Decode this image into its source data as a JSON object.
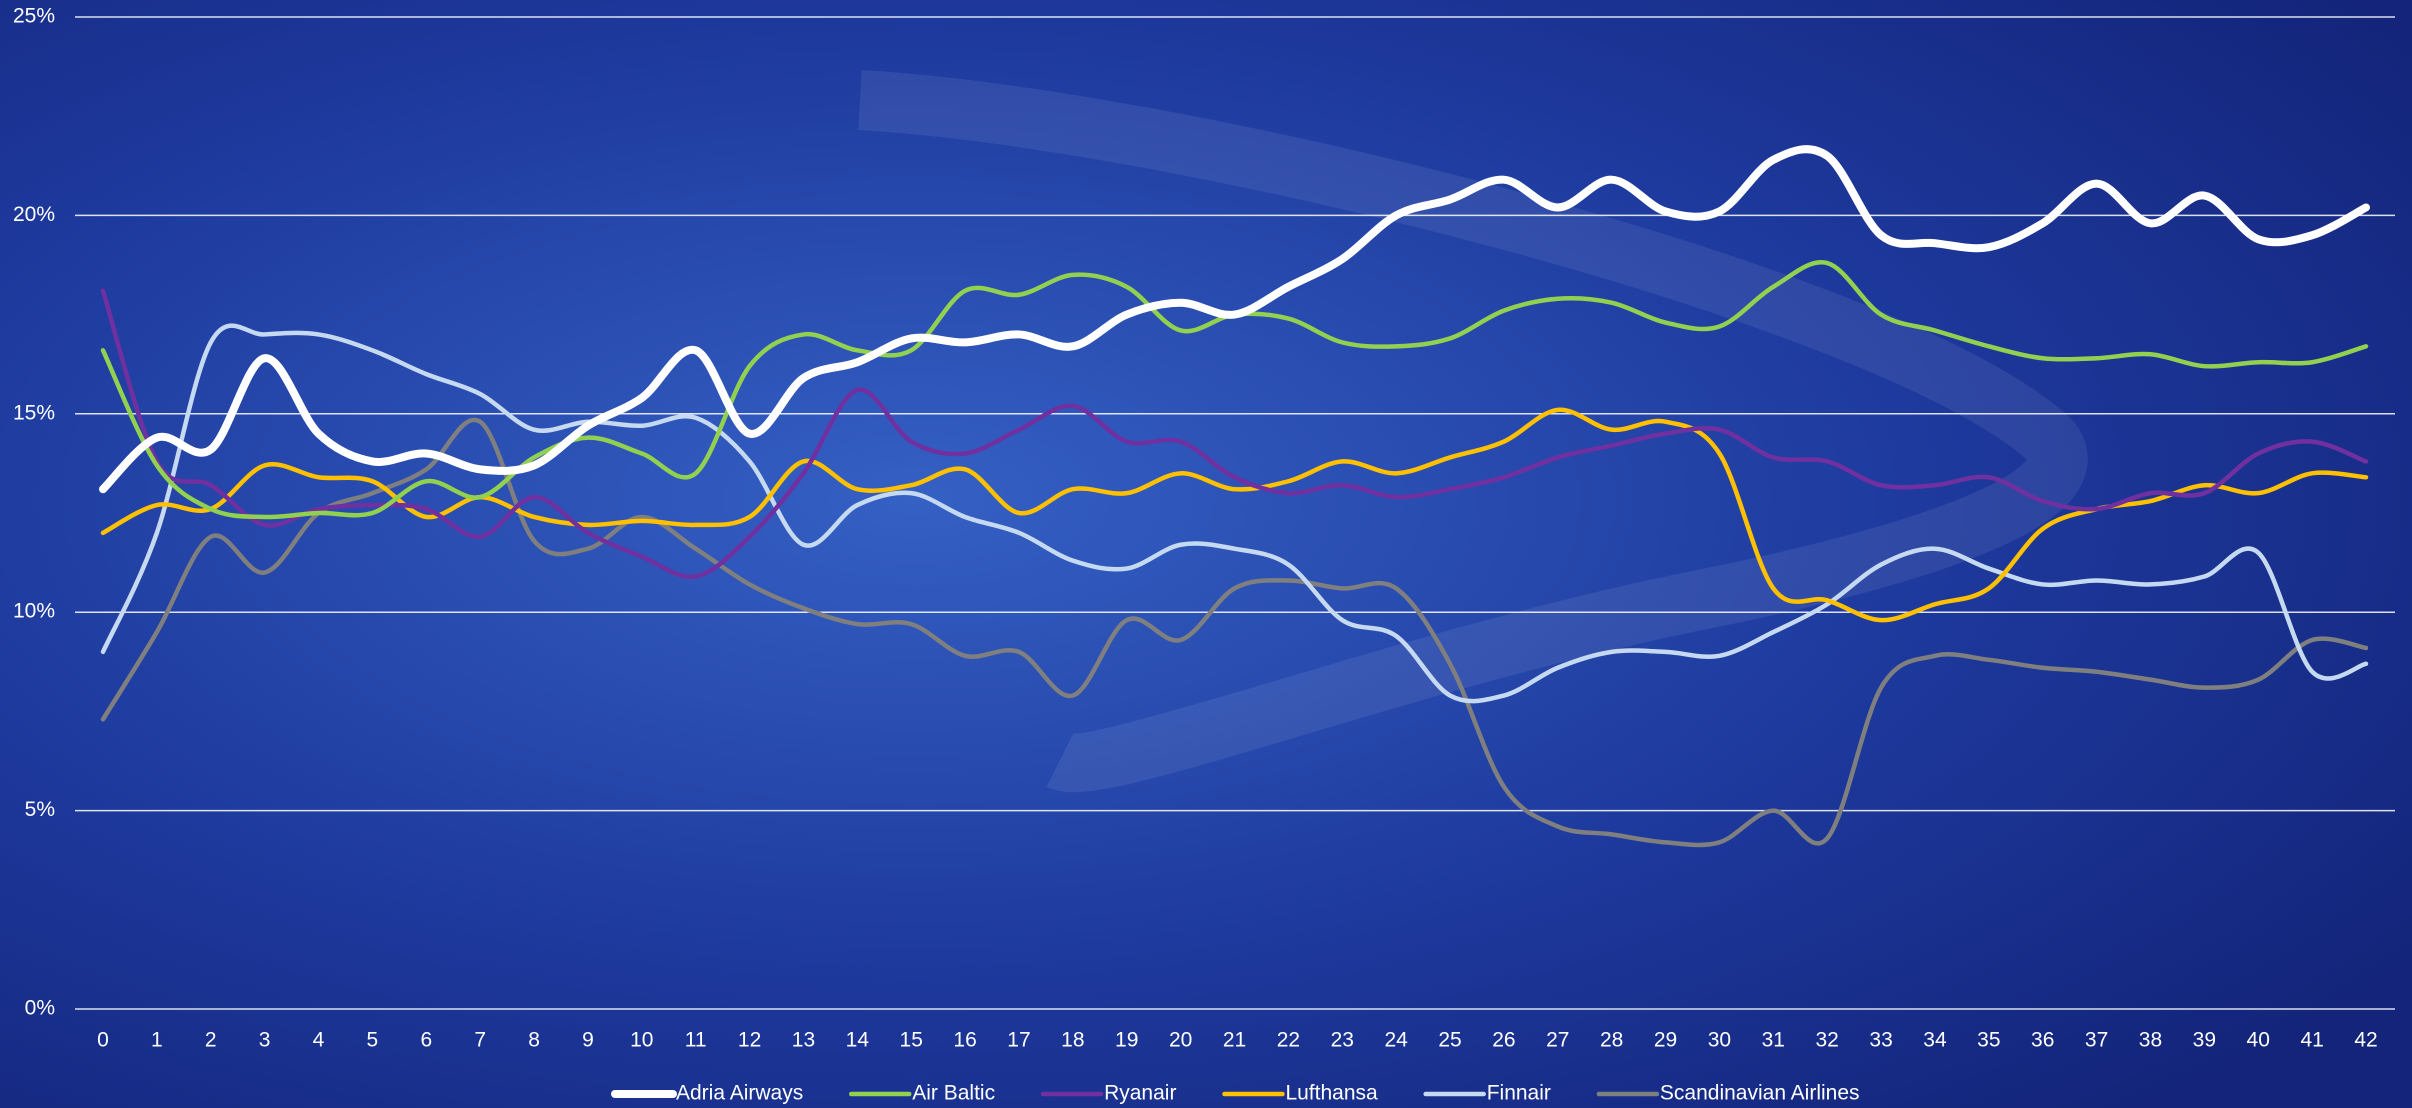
{
  "chart_data": {
    "type": "line",
    "x": [
      0,
      1,
      2,
      3,
      4,
      5,
      6,
      7,
      8,
      9,
      10,
      11,
      12,
      13,
      14,
      15,
      16,
      17,
      18,
      19,
      20,
      21,
      22,
      23,
      24,
      25,
      26,
      27,
      28,
      29,
      30,
      31,
      32,
      33,
      34,
      35,
      36,
      37,
      38,
      39,
      40,
      41,
      42
    ],
    "xlim": [
      0,
      42
    ],
    "xticks": [
      0,
      1,
      2,
      3,
      4,
      5,
      6,
      7,
      8,
      9,
      10,
      11,
      12,
      13,
      14,
      15,
      16,
      17,
      18,
      19,
      20,
      21,
      22,
      23,
      24,
      25,
      26,
      27,
      28,
      29,
      30,
      31,
      32,
      33,
      34,
      35,
      36,
      37,
      38,
      39,
      40,
      41,
      42
    ],
    "ylim": [
      0,
      25
    ],
    "yticks": [
      {
        "value": 0,
        "label": "0%"
      },
      {
        "value": 5,
        "label": "5%"
      },
      {
        "value": 10,
        "label": "10%"
      },
      {
        "value": 15,
        "label": "15%"
      },
      {
        "value": 20,
        "label": "20%"
      },
      {
        "value": 25,
        "label": "25%"
      }
    ],
    "grid": true,
    "legend": "bottom",
    "series": [
      {
        "name": "Adria Airways",
        "color": "#ffffff",
        "values": [
          13.1,
          14.4,
          14.1,
          16.4,
          14.5,
          13.8,
          14.0,
          13.6,
          13.7,
          14.7,
          15.4,
          16.6,
          14.5,
          15.9,
          16.3,
          16.9,
          16.8,
          17.0,
          16.7,
          17.5,
          17.8,
          17.5,
          18.2,
          18.9,
          20.0,
          20.4,
          20.9,
          20.2,
          20.9,
          20.1,
          20.1,
          21.4,
          21.5,
          19.5,
          19.3,
          19.2,
          19.8,
          20.8,
          19.8,
          20.5,
          19.4,
          19.5,
          20.2
        ]
      },
      {
        "name": "Air Baltic",
        "color": "#92d050",
        "values": [
          16.6,
          13.7,
          12.6,
          12.4,
          12.5,
          12.5,
          13.3,
          12.9,
          13.9,
          14.4,
          14.0,
          13.5,
          16.2,
          17.0,
          16.6,
          16.6,
          18.1,
          18.0,
          18.5,
          18.2,
          17.1,
          17.5,
          17.4,
          16.8,
          16.7,
          16.9,
          17.6,
          17.9,
          17.8,
          17.3,
          17.2,
          18.2,
          18.8,
          17.5,
          17.1,
          16.7,
          16.4,
          16.4,
          16.5,
          16.2,
          16.3,
          16.3,
          16.7
        ]
      },
      {
        "name": "Ryanair",
        "color": "#7030a0",
        "values": [
          18.1,
          13.8,
          13.2,
          12.2,
          12.6,
          12.7,
          12.6,
          11.9,
          12.9,
          12.0,
          11.4,
          10.9,
          11.9,
          13.5,
          15.6,
          14.3,
          14.0,
          14.6,
          15.2,
          14.3,
          14.3,
          13.4,
          13.0,
          13.2,
          12.9,
          13.1,
          13.4,
          13.9,
          14.2,
          14.5,
          14.6,
          13.9,
          13.8,
          13.2,
          13.2,
          13.4,
          12.8,
          12.6,
          13.0,
          13.0,
          14.0,
          14.3,
          13.8
        ]
      },
      {
        "name": "Lufthansa",
        "color": "#ffc000",
        "values": [
          12.0,
          12.7,
          12.6,
          13.7,
          13.4,
          13.3,
          12.4,
          12.9,
          12.4,
          12.2,
          12.3,
          12.2,
          12.4,
          13.8,
          13.1,
          13.2,
          13.6,
          12.5,
          13.1,
          13.0,
          13.5,
          13.1,
          13.3,
          13.8,
          13.5,
          13.9,
          14.3,
          15.1,
          14.6,
          14.8,
          14.0,
          10.6,
          10.3,
          9.8,
          10.2,
          10.6,
          12.1,
          12.6,
          12.8,
          13.2,
          13.0,
          13.5,
          13.4
        ]
      },
      {
        "name": "Finnair",
        "color": "#c5d9f1",
        "values": [
          9.0,
          12.0,
          16.8,
          17.0,
          17.0,
          16.6,
          16.0,
          15.5,
          14.6,
          14.8,
          14.7,
          14.9,
          13.8,
          11.7,
          12.7,
          13.0,
          12.4,
          12.0,
          11.3,
          11.1,
          11.7,
          11.6,
          11.2,
          9.8,
          9.4,
          7.9,
          7.9,
          8.6,
          9.0,
          9.0,
          8.9,
          9.5,
          10.2,
          11.2,
          11.6,
          11.1,
          10.7,
          10.8,
          10.7,
          10.9,
          11.5,
          8.5,
          8.7
        ]
      },
      {
        "name": "Scandinavian Airlines",
        "color": "#7f7f7f",
        "values": [
          7.3,
          9.5,
          11.9,
          11.0,
          12.5,
          13.0,
          13.6,
          14.8,
          11.8,
          11.6,
          12.4,
          11.6,
          10.7,
          10.1,
          9.7,
          9.7,
          8.9,
          9.0,
          7.9,
          9.8,
          9.3,
          10.6,
          10.8,
          10.6,
          10.6,
          8.7,
          5.6,
          4.6,
          4.4,
          4.2,
          4.2,
          5.0,
          4.3,
          8.1,
          8.9,
          8.8,
          8.6,
          8.5,
          8.3,
          8.1,
          8.3,
          9.3,
          9.1
        ]
      }
    ]
  }
}
